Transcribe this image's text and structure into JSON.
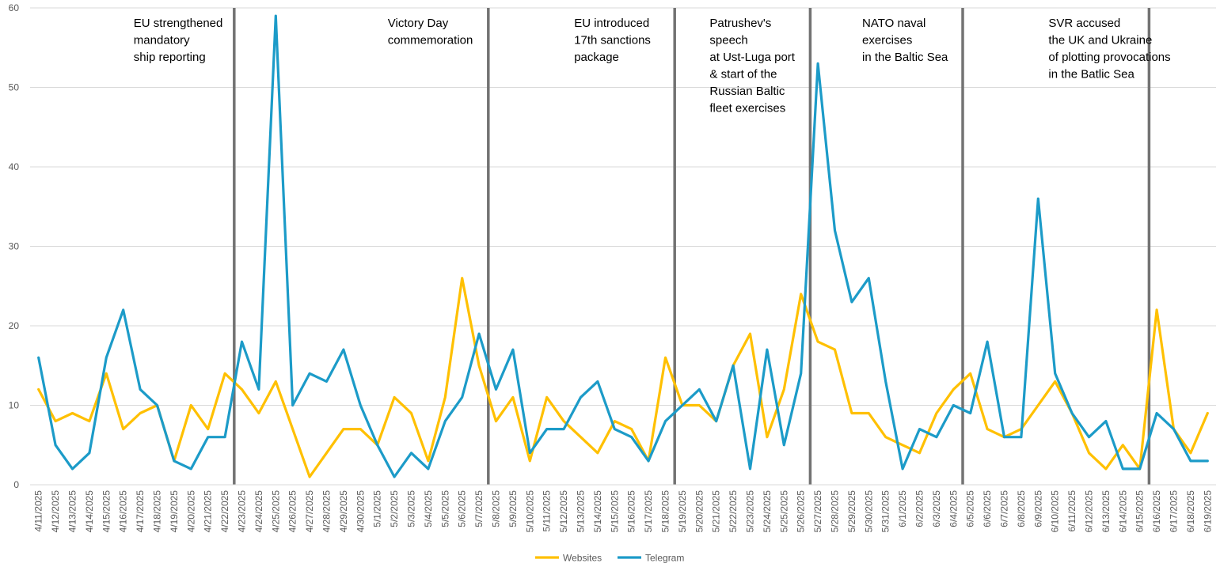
{
  "chart_data": {
    "type": "line",
    "title": "",
    "xlabel": "",
    "ylabel": "",
    "ylim": [
      0,
      60
    ],
    "yticks": [
      0,
      10,
      20,
      30,
      40,
      50,
      60
    ],
    "grid": "horizontal",
    "legend_position": "bottom",
    "categories": [
      "4/11/2025",
      "4/12/2025",
      "4/13/2025",
      "4/14/2025",
      "4/15/2025",
      "4/16/2025",
      "4/17/2025",
      "4/18/2025",
      "4/19/2025",
      "4/20/2025",
      "4/21/2025",
      "4/22/2025",
      "4/23/2025",
      "4/24/2025",
      "4/25/2025",
      "4/26/2025",
      "4/27/2025",
      "4/28/2025",
      "4/29/2025",
      "4/30/2025",
      "5/1/2025",
      "5/2/2025",
      "5/3/2025",
      "5/4/2025",
      "5/5/2025",
      "5/6/2025",
      "5/7/2025",
      "5/8/2025",
      "5/9/2025",
      "5/10/2025",
      "5/11/2025",
      "5/12/2025",
      "5/13/2025",
      "5/14/2025",
      "5/15/2025",
      "5/16/2025",
      "5/17/2025",
      "5/18/2025",
      "5/19/2025",
      "5/20/2025",
      "5/21/2025",
      "5/22/2025",
      "5/23/2025",
      "5/24/2025",
      "5/25/2025",
      "5/26/2025",
      "5/27/2025",
      "5/28/2025",
      "5/29/2025",
      "5/30/2025",
      "5/31/2025",
      "6/1/2025",
      "6/2/2025",
      "6/3/2025",
      "6/4/2025",
      "6/5/2025",
      "6/6/2025",
      "6/7/2025",
      "6/8/2025",
      "6/9/2025",
      "6/10/2025",
      "6/11/2025",
      "6/12/2025",
      "6/13/2025",
      "6/14/2025",
      "6/15/2025",
      "6/16/2025",
      "6/17/2025",
      "6/18/2025",
      "6/19/2025"
    ],
    "series": [
      {
        "name": "Websites",
        "color": "#FFC000",
        "values": [
          12,
          8,
          9,
          8,
          14,
          7,
          9,
          10,
          3,
          10,
          7,
          14,
          12,
          9,
          13,
          7,
          1,
          4,
          7,
          7,
          5,
          11,
          9,
          3,
          11,
          26,
          15,
          8,
          11,
          3,
          11,
          8,
          6,
          4,
          8,
          7,
          3,
          16,
          10,
          10,
          8,
          15,
          19,
          6,
          12,
          24,
          18,
          17,
          9,
          9,
          6,
          5,
          4,
          9,
          12,
          14,
          7,
          6,
          7,
          10,
          13,
          9,
          4,
          2,
          5,
          2,
          22,
          7,
          4,
          9
        ]
      },
      {
        "name": "Telegram",
        "color": "#1C9BC8",
        "values": [
          16,
          5,
          2,
          4,
          16,
          22,
          12,
          10,
          3,
          2,
          6,
          6,
          18,
          12,
          59,
          10,
          14,
          13,
          17,
          10,
          5,
          1,
          4,
          2,
          8,
          11,
          19,
          12,
          17,
          4,
          7,
          7,
          11,
          13,
          7,
          6,
          3,
          8,
          10,
          12,
          8,
          15,
          2,
          17,
          5,
          14,
          53,
          32,
          23,
          26,
          13,
          2,
          7,
          6,
          10,
          9,
          18,
          6,
          6,
          36,
          14,
          9,
          6,
          8,
          2,
          2,
          9,
          7,
          3,
          3
        ]
      }
    ],
    "event_lines": [
      {
        "date": "4/23/2025",
        "label_lines": [
          "EU strengthened",
          "mandatory",
          "ship reporting"
        ]
      },
      {
        "date": "5/8/2025",
        "label_lines": [
          "Victory Day",
          "commemoration"
        ]
      },
      {
        "date": "5/19/2025",
        "label_lines": [
          "EU introduced",
          "17th sanctions",
          "package"
        ]
      },
      {
        "date": "5/27/2025",
        "label_lines": [
          "Patrushev's",
          "speech",
          "at Ust-Luga port",
          "& start of the",
          "Russian Baltic",
          "fleet exercises"
        ]
      },
      {
        "date": "6/5/2025",
        "label_lines": [
          "NATO naval",
          "exercises",
          "in the Baltic Sea"
        ]
      },
      {
        "date": "6/16/2025",
        "label_lines": [
          "SVR accused",
          "the UK and Ukraine",
          "of plotting  provocations",
          "in the Batlic Sea"
        ]
      }
    ]
  }
}
